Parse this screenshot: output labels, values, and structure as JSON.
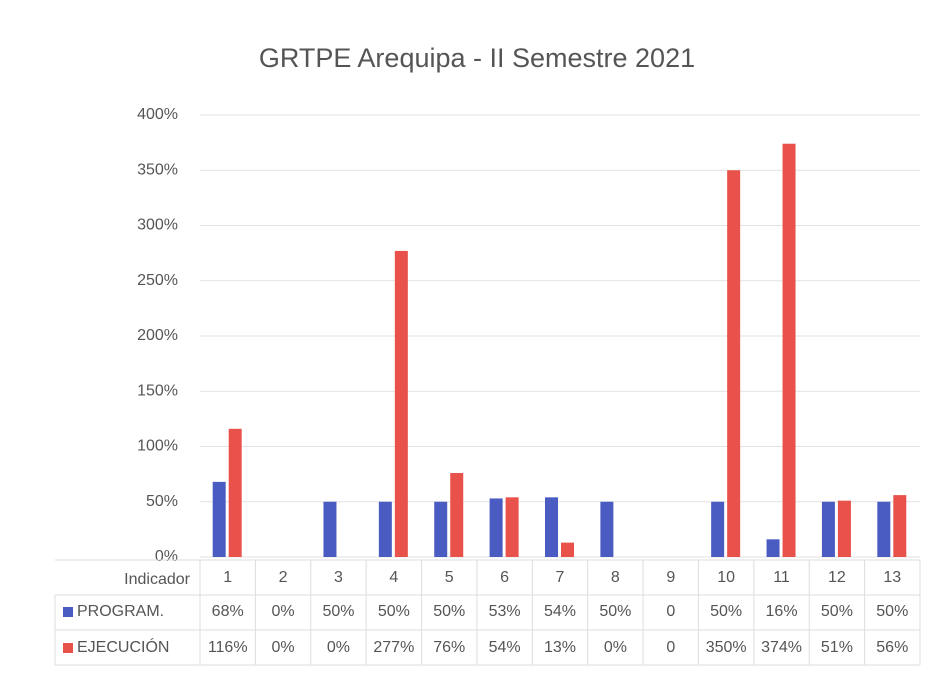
{
  "chart_data": {
    "type": "bar",
    "title": "GRTPE Arequipa - II Semestre 2021",
    "category_label": "Indicador",
    "categories": [
      "1",
      "2",
      "3",
      "4",
      "5",
      "6",
      "7",
      "8",
      "9",
      "10",
      "11",
      "12",
      "13"
    ],
    "series": [
      {
        "name": "PROGRAM.",
        "color": "#4a5cc2",
        "values": [
          68,
          0,
          50,
          50,
          50,
          53,
          54,
          50,
          0,
          50,
          16,
          50,
          50
        ],
        "value_labels": [
          "68%",
          "0%",
          "50%",
          "50%",
          "50%",
          "53%",
          "54%",
          "50%",
          "0",
          "50%",
          "16%",
          "50%",
          "50%"
        ]
      },
      {
        "name": "EJECUCIÓN",
        "color": "#e8524a",
        "values": [
          116,
          0,
          0,
          277,
          76,
          54,
          13,
          0,
          0,
          350,
          374,
          51,
          56
        ],
        "value_labels": [
          "116%",
          "0%",
          "0%",
          "277%",
          "76%",
          "54%",
          "13%",
          "0%",
          "0",
          "350%",
          "374%",
          "51%",
          "56%"
        ]
      }
    ],
    "ylim": [
      0,
      400
    ],
    "yticks": [
      {
        "value": 0,
        "label": "0%"
      },
      {
        "value": 50,
        "label": "50%"
      },
      {
        "value": 100,
        "label": "100%"
      },
      {
        "value": 150,
        "label": "150%"
      },
      {
        "value": 200,
        "label": "200%"
      },
      {
        "value": 250,
        "label": "250%"
      },
      {
        "value": 300,
        "label": "300%"
      },
      {
        "value": 350,
        "label": "350%"
      },
      {
        "value": 400,
        "label": "400%"
      }
    ],
    "grid": true
  }
}
